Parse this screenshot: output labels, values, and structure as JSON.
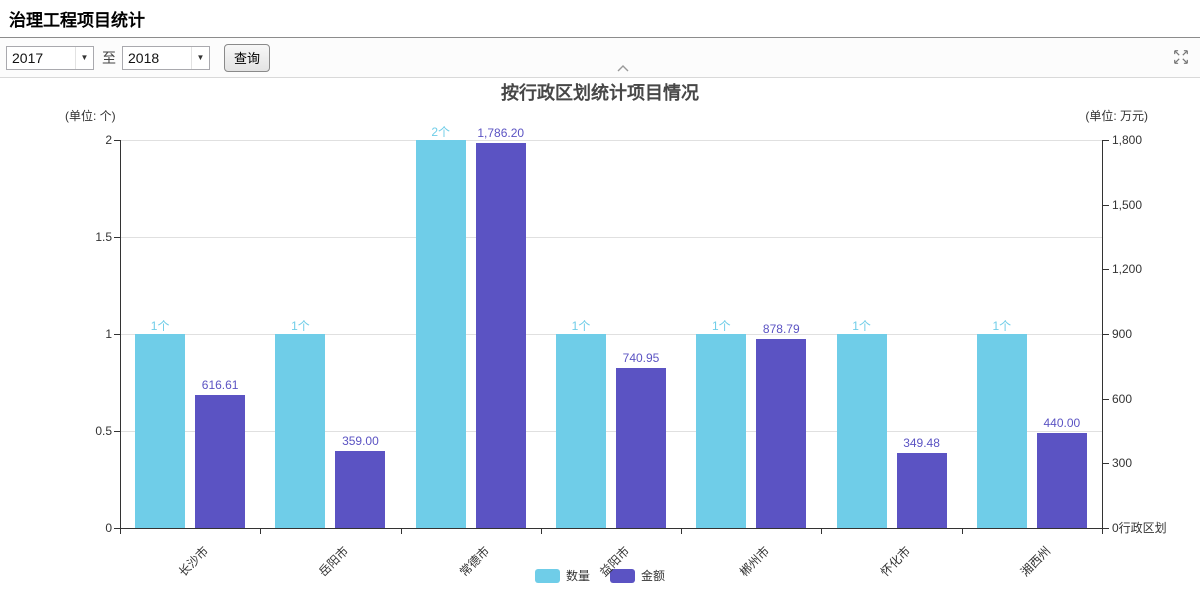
{
  "page": {
    "title": "治理工程项目统计"
  },
  "toolbar": {
    "year_from": "2017",
    "to_label": "至",
    "year_to": "2018",
    "query_label": "查询"
  },
  "colors": {
    "quantity": "#6fcde8",
    "amount": "#5b53c3",
    "grid": "#e0e0e0",
    "axis": "#333333"
  },
  "chart_data": {
    "type": "bar",
    "title": "按行政区划统计项目情况",
    "left_axis": {
      "unit_label": "(单位: 个)",
      "max": 2,
      "tick_step": 0.5,
      "ticks": [
        "2",
        "1.5",
        "1",
        "0.5",
        "0"
      ]
    },
    "right_axis": {
      "unit_label": "(单位: 万元)",
      "max": 1800,
      "tick_step": 300,
      "ticks": [
        "1,800",
        "1,500",
        "1,200",
        "900",
        "600",
        "300",
        "0"
      ],
      "axis_name": "行政区划"
    },
    "categories": [
      "长沙市",
      "岳阳市",
      "常德市",
      "益阳市",
      "郴州市",
      "怀化市",
      "湘西州"
    ],
    "series": [
      {
        "name": "数量",
        "axis": "left",
        "color": "#6fcde8",
        "values": [
          1,
          1,
          2,
          1,
          1,
          1,
          1
        ],
        "labels": [
          "1个",
          "1个",
          "2个",
          "1个",
          "1个",
          "1个",
          "1个"
        ]
      },
      {
        "name": "金额",
        "axis": "right",
        "color": "#5b53c3",
        "values": [
          616.61,
          359.0,
          1786.2,
          740.95,
          878.79,
          349.48,
          440.0
        ],
        "labels": [
          "616.61",
          "359.00",
          "1,786.20",
          "740.95",
          "878.79",
          "349.48",
          "440.00"
        ]
      }
    ],
    "legend": [
      "数量",
      "金额"
    ],
    "legend_position": "bottom",
    "grid": true
  }
}
